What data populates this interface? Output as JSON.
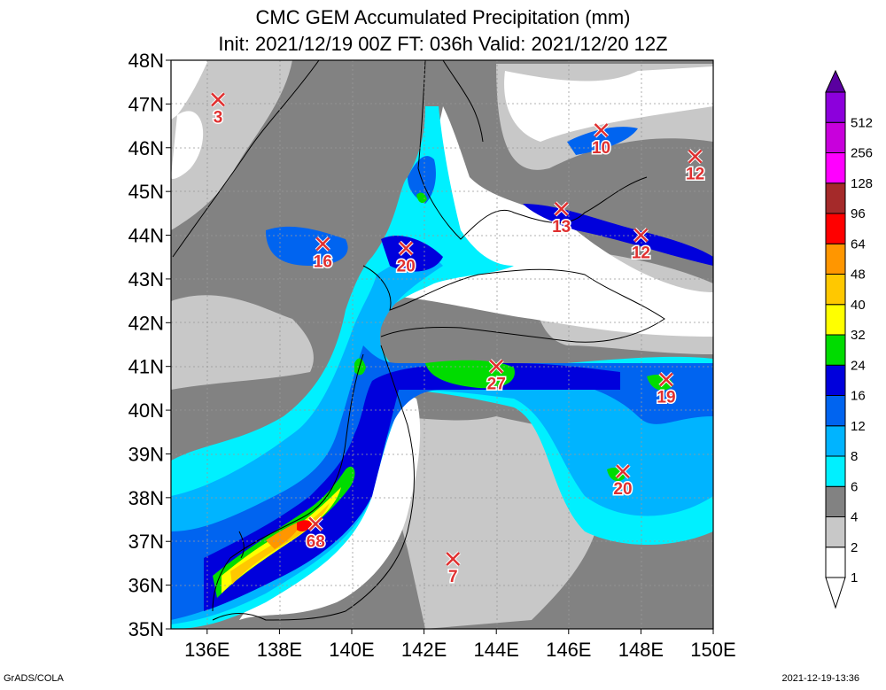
{
  "header": {
    "title": "CMC GEM Accumulated Precipitation (mm)",
    "subtitle": "Init: 2021/12/19 00Z  FT: 036h  Valid: 2021/12/20 12Z"
  },
  "axes": {
    "x_ticks": [
      "136E",
      "138E",
      "140E",
      "142E",
      "144E",
      "146E",
      "148E",
      "150E"
    ],
    "y_ticks": [
      "35N",
      "36N",
      "37N",
      "38N",
      "39N",
      "40N",
      "41N",
      "42N",
      "43N",
      "44N",
      "45N",
      "46N",
      "47N",
      "48N"
    ],
    "lon_range": [
      135,
      150
    ],
    "lat_range": [
      35,
      48
    ]
  },
  "legend": {
    "levels": [
      {
        "label": "1",
        "color": "#ffffff"
      },
      {
        "label": "2",
        "color": "#c8c8c8"
      },
      {
        "label": "4",
        "color": "#828282"
      },
      {
        "label": "6",
        "color": "#00f0ff"
      },
      {
        "label": "8",
        "color": "#00b4ff"
      },
      {
        "label": "12",
        "color": "#0064f0"
      },
      {
        "label": "16",
        "color": "#0000dc"
      },
      {
        "label": "24",
        "color": "#00dc00"
      },
      {
        "label": "32",
        "color": "#ffff00"
      },
      {
        "label": "40",
        "color": "#ffc800"
      },
      {
        "label": "48",
        "color": "#ff9600"
      },
      {
        "label": "64",
        "color": "#ff0000"
      },
      {
        "label": "96",
        "color": "#a52a2a"
      },
      {
        "label": "128",
        "color": "#ff00ff"
      },
      {
        "label": "256",
        "color": "#c800dc"
      },
      {
        "label": "512",
        "color": "#8c00dc"
      }
    ],
    "top_arrow_color": "#5a00a0"
  },
  "markers": [
    {
      "label": "3",
      "lon": 136.3,
      "lat": 47.1
    },
    {
      "label": "10",
      "lon": 146.9,
      "lat": 46.4
    },
    {
      "label": "12",
      "lon": 149.5,
      "lat": 45.8
    },
    {
      "label": "13",
      "lon": 145.8,
      "lat": 44.6
    },
    {
      "label": "12",
      "lon": 148.0,
      "lat": 44.0
    },
    {
      "label": "16",
      "lon": 139.2,
      "lat": 43.8
    },
    {
      "label": "20",
      "lon": 141.5,
      "lat": 43.7
    },
    {
      "label": "27",
      "lon": 144.0,
      "lat": 41.0
    },
    {
      "label": "19",
      "lon": 148.7,
      "lat": 40.7
    },
    {
      "label": "20",
      "lon": 147.5,
      "lat": 38.6
    },
    {
      "label": "68",
      "lon": 139.0,
      "lat": 37.4
    },
    {
      "label": "7",
      "lon": 142.8,
      "lat": 36.6
    }
  ],
  "marker_color": "#e03030",
  "footer": {
    "left": "GrADS/COLA",
    "right": "2021-12-19-13:36"
  }
}
